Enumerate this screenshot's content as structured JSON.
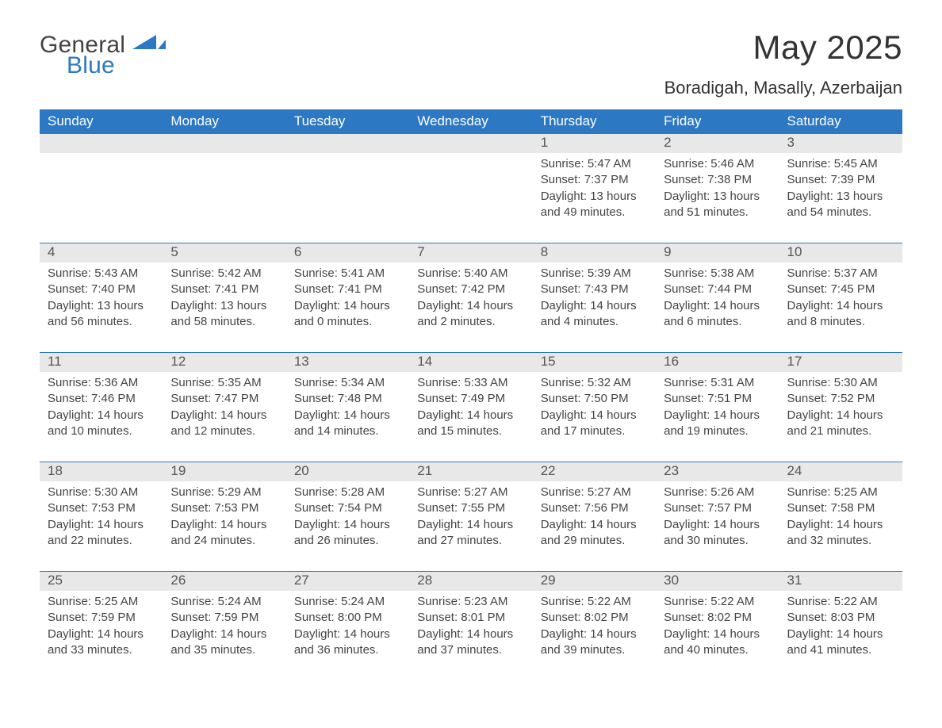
{
  "brand": {
    "word1": "General",
    "word2": "Blue",
    "brand_color": "#2d78c2"
  },
  "title": "May 2025",
  "location": "Boradigah, Masally, Azerbaijan",
  "colors": {
    "header_bg": "#2d78c2",
    "header_text": "#ffffff",
    "daynum_bg": "#e8e8e8",
    "row_divider": "#2d78c2",
    "body_text": "#444444",
    "page_bg": "#ffffff"
  },
  "weekdays": [
    "Sunday",
    "Monday",
    "Tuesday",
    "Wednesday",
    "Thursday",
    "Friday",
    "Saturday"
  ],
  "weeks": [
    [
      null,
      null,
      null,
      null,
      {
        "n": "1",
        "sr": "5:47 AM",
        "ss": "7:37 PM",
        "dl": "13 hours and 49 minutes."
      },
      {
        "n": "2",
        "sr": "5:46 AM",
        "ss": "7:38 PM",
        "dl": "13 hours and 51 minutes."
      },
      {
        "n": "3",
        "sr": "5:45 AM",
        "ss": "7:39 PM",
        "dl": "13 hours and 54 minutes."
      }
    ],
    [
      {
        "n": "4",
        "sr": "5:43 AM",
        "ss": "7:40 PM",
        "dl": "13 hours and 56 minutes."
      },
      {
        "n": "5",
        "sr": "5:42 AM",
        "ss": "7:41 PM",
        "dl": "13 hours and 58 minutes."
      },
      {
        "n": "6",
        "sr": "5:41 AM",
        "ss": "7:41 PM",
        "dl": "14 hours and 0 minutes."
      },
      {
        "n": "7",
        "sr": "5:40 AM",
        "ss": "7:42 PM",
        "dl": "14 hours and 2 minutes."
      },
      {
        "n": "8",
        "sr": "5:39 AM",
        "ss": "7:43 PM",
        "dl": "14 hours and 4 minutes."
      },
      {
        "n": "9",
        "sr": "5:38 AM",
        "ss": "7:44 PM",
        "dl": "14 hours and 6 minutes."
      },
      {
        "n": "10",
        "sr": "5:37 AM",
        "ss": "7:45 PM",
        "dl": "14 hours and 8 minutes."
      }
    ],
    [
      {
        "n": "11",
        "sr": "5:36 AM",
        "ss": "7:46 PM",
        "dl": "14 hours and 10 minutes."
      },
      {
        "n": "12",
        "sr": "5:35 AM",
        "ss": "7:47 PM",
        "dl": "14 hours and 12 minutes."
      },
      {
        "n": "13",
        "sr": "5:34 AM",
        "ss": "7:48 PM",
        "dl": "14 hours and 14 minutes."
      },
      {
        "n": "14",
        "sr": "5:33 AM",
        "ss": "7:49 PM",
        "dl": "14 hours and 15 minutes."
      },
      {
        "n": "15",
        "sr": "5:32 AM",
        "ss": "7:50 PM",
        "dl": "14 hours and 17 minutes."
      },
      {
        "n": "16",
        "sr": "5:31 AM",
        "ss": "7:51 PM",
        "dl": "14 hours and 19 minutes."
      },
      {
        "n": "17",
        "sr": "5:30 AM",
        "ss": "7:52 PM",
        "dl": "14 hours and 21 minutes."
      }
    ],
    [
      {
        "n": "18",
        "sr": "5:30 AM",
        "ss": "7:53 PM",
        "dl": "14 hours and 22 minutes."
      },
      {
        "n": "19",
        "sr": "5:29 AM",
        "ss": "7:53 PM",
        "dl": "14 hours and 24 minutes."
      },
      {
        "n": "20",
        "sr": "5:28 AM",
        "ss": "7:54 PM",
        "dl": "14 hours and 26 minutes."
      },
      {
        "n": "21",
        "sr": "5:27 AM",
        "ss": "7:55 PM",
        "dl": "14 hours and 27 minutes."
      },
      {
        "n": "22",
        "sr": "5:27 AM",
        "ss": "7:56 PM",
        "dl": "14 hours and 29 minutes."
      },
      {
        "n": "23",
        "sr": "5:26 AM",
        "ss": "7:57 PM",
        "dl": "14 hours and 30 minutes."
      },
      {
        "n": "24",
        "sr": "5:25 AM",
        "ss": "7:58 PM",
        "dl": "14 hours and 32 minutes."
      }
    ],
    [
      {
        "n": "25",
        "sr": "5:25 AM",
        "ss": "7:59 PM",
        "dl": "14 hours and 33 minutes."
      },
      {
        "n": "26",
        "sr": "5:24 AM",
        "ss": "7:59 PM",
        "dl": "14 hours and 35 minutes."
      },
      {
        "n": "27",
        "sr": "5:24 AM",
        "ss": "8:00 PM",
        "dl": "14 hours and 36 minutes."
      },
      {
        "n": "28",
        "sr": "5:23 AM",
        "ss": "8:01 PM",
        "dl": "14 hours and 37 minutes."
      },
      {
        "n": "29",
        "sr": "5:22 AM",
        "ss": "8:02 PM",
        "dl": "14 hours and 39 minutes."
      },
      {
        "n": "30",
        "sr": "5:22 AM",
        "ss": "8:02 PM",
        "dl": "14 hours and 40 minutes."
      },
      {
        "n": "31",
        "sr": "5:22 AM",
        "ss": "8:03 PM",
        "dl": "14 hours and 41 minutes."
      }
    ]
  ],
  "labels": {
    "sunrise": "Sunrise:",
    "sunset": "Sunset:",
    "daylight": "Daylight:"
  }
}
